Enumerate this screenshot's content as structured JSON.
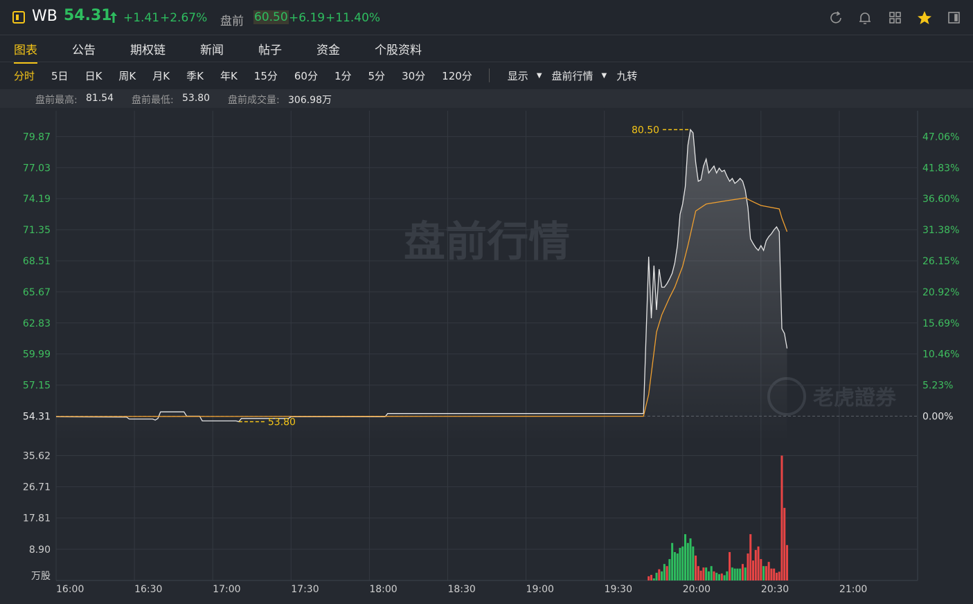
{
  "header": {
    "symbol": "WB",
    "price": "54.31",
    "change": "+1.41",
    "change_pct": "+2.67%",
    "pre_label": "盘前",
    "pre_price": "60.50",
    "pre_change": "+6.19",
    "pre_change_pct": "+11.40%"
  },
  "tabs": [
    "图表",
    "公告",
    "期权链",
    "新闻",
    "帖子",
    "资金",
    "个股资料"
  ],
  "active_tab": 0,
  "periods": [
    "分时",
    "5日",
    "日K",
    "周K",
    "月K",
    "季K",
    "年K",
    "15分",
    "60分",
    "1分",
    "5分",
    "30分",
    "120分"
  ],
  "active_period": 0,
  "tools": [
    "显示",
    "盘前行情",
    "九转"
  ],
  "stats": [
    {
      "label": "盘前最高:",
      "value": "81.54"
    },
    {
      "label": "盘前最低:",
      "value": "53.80"
    },
    {
      "label": "盘前成交量:",
      "value": "306.98万"
    }
  ],
  "chart_data": [
    {
      "type": "line",
      "watermark": "盘前行情",
      "brand": "老虎證券",
      "xlim": [
        "16:00",
        "21:30"
      ],
      "ylim": [
        52,
        81.6
      ],
      "yticks": [
        54.31,
        57.15,
        59.99,
        62.83,
        65.67,
        68.51,
        71.35,
        74.19,
        77.03,
        79.87
      ],
      "y2lim": [
        -4.25,
        50.25
      ],
      "y2ticks": [
        {
          "value": 0,
          "label": "0.00%"
        },
        {
          "value": 5.23,
          "label": "5.23%"
        },
        {
          "value": 10.46,
          "label": "10.46%"
        },
        {
          "value": 15.69,
          "label": "15.69%"
        },
        {
          "value": 20.92,
          "label": "20.92%"
        },
        {
          "value": 26.15,
          "label": "26.15%"
        },
        {
          "value": 31.38,
          "label": "31.38%"
        },
        {
          "value": 36.6,
          "label": "36.60%"
        },
        {
          "value": 41.83,
          "label": "41.83%"
        },
        {
          "value": 47.06,
          "label": "47.06%"
        }
      ],
      "reference_line": 54.31,
      "grid": true,
      "series": [
        {
          "color": "#e6e6e6",
          "x": [
            "16:00",
            "16:27",
            "16:28",
            "16:37",
            "16:38",
            "16:39",
            "16:40",
            "16:49",
            "16:50",
            "16:55",
            "16:56",
            "17:09",
            "17:10",
            "17:11",
            "17:29",
            "17:30",
            "18:06",
            "18:07",
            "19:45",
            "19:47",
            "19:48",
            "19:49",
            "19:50",
            "19:51",
            "19:52",
            "19:53",
            "19:54",
            "19:55",
            "19:56",
            "19:57",
            "19:58",
            "19:59",
            "20:00",
            "20:01",
            "20:02",
            "20:03",
            "20:04",
            "20:05",
            "20:06",
            "20:07",
            "20:08",
            "20:09",
            "20:10",
            "20:11",
            "20:12",
            "20:13",
            "20:14",
            "20:15",
            "20:16",
            "20:17",
            "20:18",
            "20:19",
            "20:20",
            "20:21",
            "20:22",
            "20:23",
            "20:24",
            "20:25",
            "20:26",
            "20:27",
            "20:28",
            "20:29",
            "20:30",
            "20:31",
            "20:32",
            "20:33",
            "20:34",
            "20:35",
            "20:36",
            "20:37",
            "20:38",
            "20:39",
            "20:40"
          ],
          "values": [
            54.25,
            54.22,
            54.05,
            54.05,
            53.95,
            54.1,
            54.7,
            54.7,
            54.31,
            54.31,
            53.87,
            53.87,
            53.8,
            54.1,
            54.1,
            54.25,
            54.25,
            54.55,
            54.55,
            68.89,
            63.26,
            68.07,
            64.02,
            67.75,
            66.1,
            66.1,
            66.42,
            66.86,
            67.37,
            68.32,
            69.9,
            72.75,
            73.7,
            75.28,
            79.07,
            80.5,
            80.21,
            77.49,
            75.78,
            75.91,
            77.17,
            77.81,
            76.54,
            76.86,
            77.17,
            76.54,
            76.98,
            76.67,
            76.79,
            76.23,
            75.78,
            76.04,
            75.59,
            75.78,
            76.04,
            75.78,
            74.96,
            73.38,
            70.53,
            70.09,
            69.71,
            69.46,
            69.9,
            69.46,
            70.34,
            70.72,
            70.98,
            71.35,
            71.61,
            71.17,
            62.31,
            61.87,
            60.5
          ]
        },
        {
          "color": "#f0a030",
          "x": [
            "16:00",
            "19:45",
            "19:47",
            "19:50",
            "19:52",
            "19:55",
            "19:57",
            "20:00",
            "20:02",
            "20:05",
            "20:09",
            "20:17",
            "20:24",
            "20:27",
            "20:30",
            "20:37",
            "20:38",
            "20:40"
          ],
          "values": [
            54.28,
            54.3,
            56.3,
            62.0,
            63.57,
            65.16,
            66.1,
            68.0,
            69.9,
            73.06,
            73.7,
            74.01,
            74.26,
            73.9,
            73.57,
            73.25,
            72.43,
            71.17
          ]
        }
      ],
      "annotations": [
        {
          "x": "20:03",
          "value": 80.5,
          "label": "80.50"
        },
        {
          "x": "17:10",
          "value": 53.8,
          "label": "53.80"
        }
      ]
    },
    {
      "type": "bar",
      "xlim": [
        "16:00",
        "21:30"
      ],
      "xticks": [
        "16:00",
        "16:30",
        "17:00",
        "17:30",
        "18:00",
        "18:30",
        "19:00",
        "19:30",
        "20:00",
        "20:30",
        "21:00"
      ],
      "ylim": [
        0,
        36.5
      ],
      "yticks": [
        {
          "value": 8.9,
          "label": "8.90"
        },
        17.81,
        26.71,
        35.62
      ],
      "unit": "万股",
      "series": [
        {
          "color": "#e84545",
          "x": [
            "19:47",
            "19:48",
            "19:51",
            "19:54",
            "20:05",
            "20:06",
            "20:07",
            "20:08",
            "20:12",
            "20:15",
            "20:18",
            "20:23",
            "20:25",
            "20:26",
            "20:27",
            "20:28",
            "20:29",
            "20:30",
            "20:32",
            "20:33",
            "20:34",
            "20:35",
            "20:36",
            "20:37",
            "20:38",
            "20:39",
            "20:40"
          ],
          "values": [
            1.2,
            1.6,
            3.2,
            4.1,
            7.1,
            4.1,
            2.8,
            3.7,
            2.6,
            2.0,
            8.1,
            4.7,
            7.7,
            13.2,
            5.7,
            8.7,
            9.7,
            6.1,
            4.1,
            5.3,
            3.4,
            3.4,
            2.2,
            2.5,
            35.62,
            20.7,
            10.1
          ]
        },
        {
          "color": "#2ebd5f",
          "x": [
            "19:49",
            "19:50",
            "19:52",
            "19:53",
            "19:55",
            "19:56",
            "19:57",
            "19:58",
            "19:59",
            "20:00",
            "20:01",
            "20:02",
            "20:03",
            "20:04",
            "20:09",
            "20:10",
            "20:11",
            "20:13",
            "20:14",
            "20:16",
            "20:17",
            "20:19",
            "20:20",
            "20:21",
            "20:22",
            "20:24",
            "20:31"
          ],
          "values": [
            0.6,
            2.2,
            2.6,
            4.7,
            6.1,
            10.7,
            8.1,
            7.7,
            9.3,
            9.7,
            13.2,
            10.7,
            12.0,
            9.7,
            3.7,
            2.6,
            4.1,
            2.2,
            1.8,
            1.5,
            2.6,
            3.7,
            3.4,
            3.4,
            3.4,
            3.7,
            4.1
          ]
        }
      ]
    }
  ]
}
